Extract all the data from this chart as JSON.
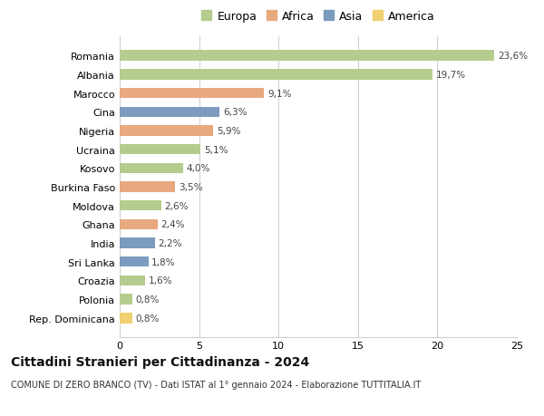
{
  "title": "Cittadini Stranieri per Cittadinanza - 2024",
  "subtitle": "COMUNE DI ZERO BRANCO (TV) - Dati ISTAT al 1° gennaio 2024 - Elaborazione TUTTITALIA.IT",
  "categories": [
    "Rep. Dominicana",
    "Polonia",
    "Croazia",
    "Sri Lanka",
    "India",
    "Ghana",
    "Moldova",
    "Burkina Faso",
    "Kosovo",
    "Ucraina",
    "Nigeria",
    "Cina",
    "Marocco",
    "Albania",
    "Romania"
  ],
  "values": [
    0.8,
    0.8,
    1.6,
    1.8,
    2.2,
    2.4,
    2.6,
    3.5,
    4.0,
    5.1,
    5.9,
    6.3,
    9.1,
    19.7,
    23.6
  ],
  "labels": [
    "0,8%",
    "0,8%",
    "1,6%",
    "1,8%",
    "2,2%",
    "2,4%",
    "2,6%",
    "3,5%",
    "4,0%",
    "5,1%",
    "5,9%",
    "6,3%",
    "9,1%",
    "19,7%",
    "23,6%"
  ],
  "continents": [
    "America",
    "Europa",
    "Europa",
    "Asia",
    "Asia",
    "Africa",
    "Europa",
    "Africa",
    "Europa",
    "Europa",
    "Africa",
    "Asia",
    "Africa",
    "Europa",
    "Europa"
  ],
  "colors": {
    "Europa": "#b5cc8e",
    "Africa": "#e8a97e",
    "Asia": "#7b9bbf",
    "America": "#f0d070"
  },
  "legend_order": [
    "Europa",
    "Africa",
    "Asia",
    "America"
  ],
  "xlim": [
    0,
    25
  ],
  "xticks": [
    0,
    5,
    10,
    15,
    20,
    25
  ],
  "background_color": "#ffffff",
  "grid_color": "#cccccc",
  "bar_height": 0.55,
  "label_fontsize": 7.5,
  "title_fontsize": 10,
  "subtitle_fontsize": 7,
  "tick_fontsize": 8,
  "legend_fontsize": 9
}
